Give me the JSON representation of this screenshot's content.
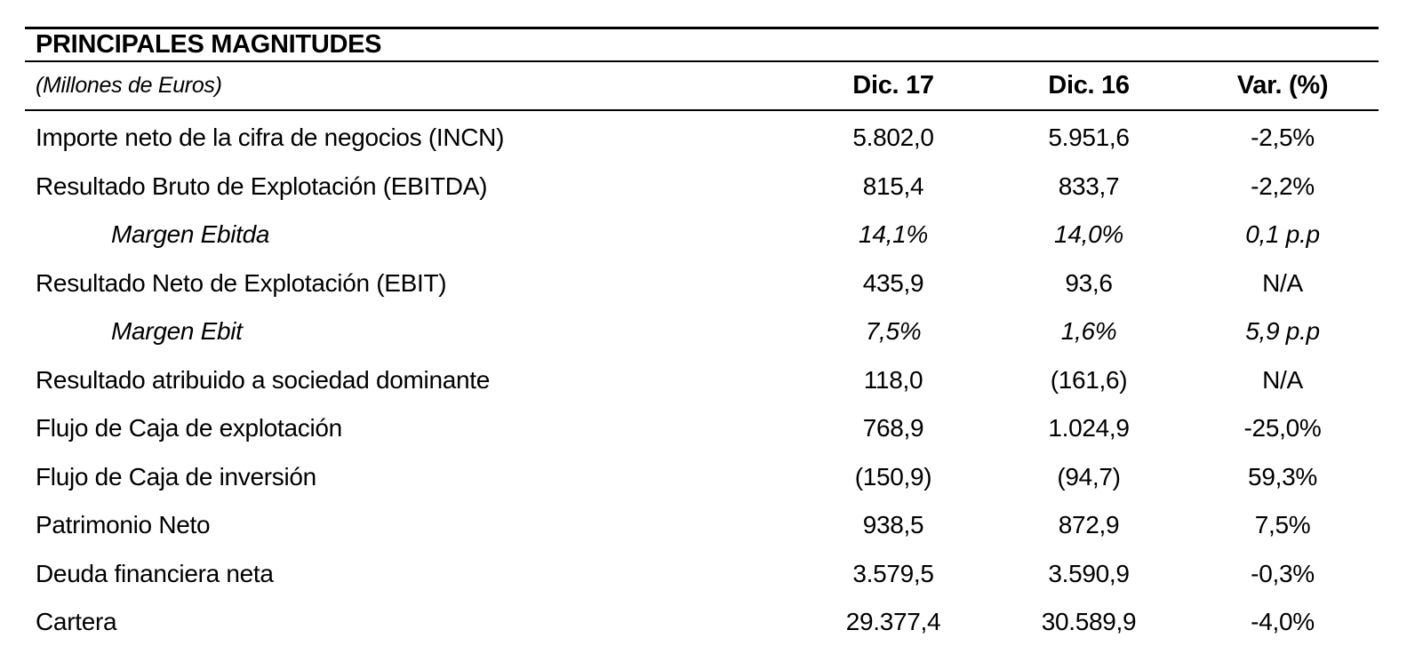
{
  "table": {
    "title": "PRINCIPALES MAGNITUDES",
    "subtitle": "(Millones de Euros)",
    "columns": {
      "col1": "Dic. 17",
      "col2": "Dic. 16",
      "col3": "Var. (%)"
    },
    "rows": [
      {
        "label": "Importe neto de la cifra de negocios (INCN)",
        "dic17": "5.802,0",
        "dic16": "5.951,6",
        "var": "-2,5%",
        "style": "normal"
      },
      {
        "label": "Resultado Bruto de Explotación (EBITDA)",
        "dic17": "815,4",
        "dic16": "833,7",
        "var": "-2,2%",
        "style": "normal"
      },
      {
        "label": "Margen Ebitda",
        "dic17": "14,1%",
        "dic16": "14,0%",
        "var": "0,1 p.p",
        "style": "italic-indent"
      },
      {
        "label": "Resultado Neto de Explotación (EBIT)",
        "dic17": "435,9",
        "dic16": "93,6",
        "var": "N/A",
        "style": "normal"
      },
      {
        "label": "Margen Ebit",
        "dic17": "7,5%",
        "dic16": "1,6%",
        "var": "5,9 p.p",
        "style": "italic-indent"
      },
      {
        "label": "Resultado atribuido a sociedad dominante",
        "dic17": "118,0",
        "dic16": "(161,6)",
        "var": "N/A",
        "style": "normal"
      },
      {
        "label": "Flujo de Caja de explotación",
        "dic17": "768,9",
        "dic16": "1.024,9",
        "var": "-25,0%",
        "style": "normal"
      },
      {
        "label": "Flujo de Caja de inversión",
        "dic17": "(150,9)",
        "dic16": "(94,7)",
        "var": "59,3%",
        "style": "normal"
      },
      {
        "label": "Patrimonio Neto",
        "dic17": "938,5",
        "dic16": "872,9",
        "var": "7,5%",
        "style": "normal"
      },
      {
        "label": "Deuda financiera neta",
        "dic17": "3.579,5",
        "dic16": "3.590,9",
        "var": "-0,3%",
        "style": "normal"
      },
      {
        "label": "Cartera",
        "dic17": "29.377,4",
        "dic16": "30.589,9",
        "var": "-4,0%",
        "style": "normal"
      }
    ]
  },
  "colors": {
    "text": "#000000",
    "background": "#ffffff",
    "rule": "#000000"
  }
}
